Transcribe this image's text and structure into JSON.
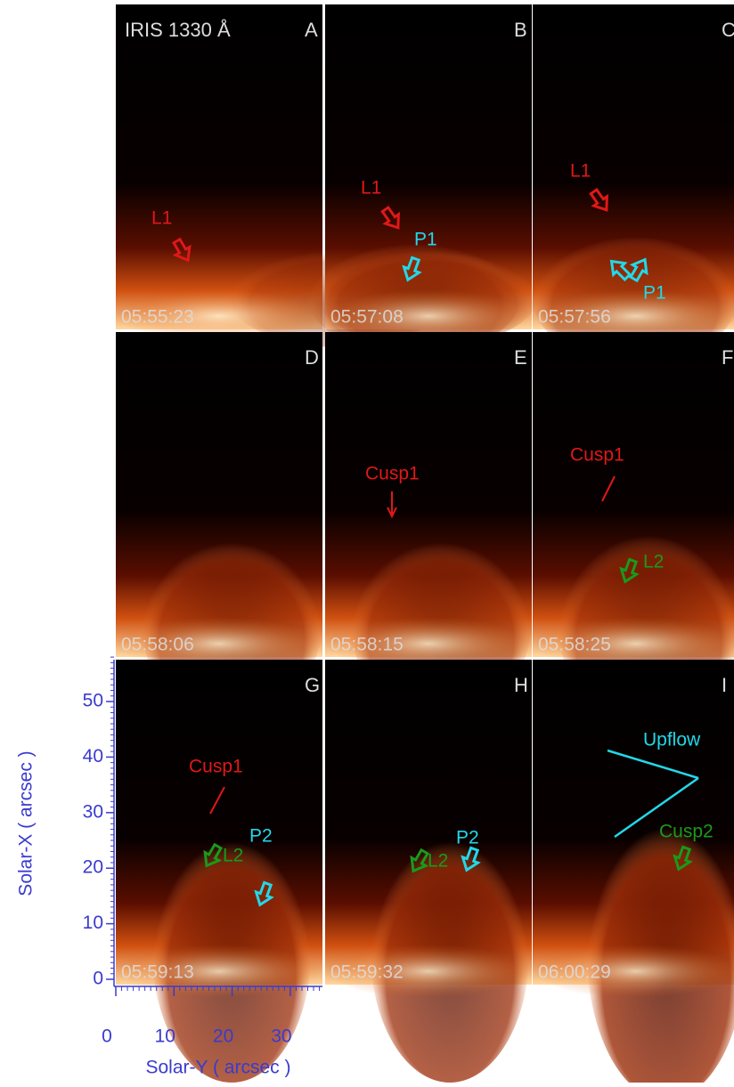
{
  "figure": {
    "title": "IRIS 1330 Å",
    "panels": [
      {
        "letter": "A",
        "time": "05:55:23",
        "annotations": [
          "L1"
        ]
      },
      {
        "letter": "B",
        "time": "05:57:08",
        "annotations": [
          "L1",
          "P1"
        ]
      },
      {
        "letter": "C",
        "time": "05:57:56",
        "annotations": [
          "L1",
          "P1"
        ]
      },
      {
        "letter": "D",
        "time": "05:58:06",
        "annotations": []
      },
      {
        "letter": "E",
        "time": "05:58:15",
        "annotations": [
          "Cusp1"
        ]
      },
      {
        "letter": "F",
        "time": "05:58:25",
        "annotations": [
          "Cusp1",
          "L2"
        ]
      },
      {
        "letter": "G",
        "time": "05:59:13",
        "annotations": [
          "Cusp1",
          "L2",
          "P2"
        ]
      },
      {
        "letter": "H",
        "time": "05:59:32",
        "annotations": [
          "L2",
          "P2"
        ]
      },
      {
        "letter": "I",
        "time": "06:00:29",
        "annotations": [
          "Upflow",
          "Cusp2"
        ]
      }
    ],
    "y_axis": {
      "label": "Solar-X  ( arcsec )",
      "ticks": [
        0,
        10,
        20,
        30,
        40,
        50
      ]
    },
    "x_axis": {
      "label": "Solar-Y  ( arcsec )",
      "ticks": [
        0,
        10,
        20,
        30
      ]
    }
  }
}
